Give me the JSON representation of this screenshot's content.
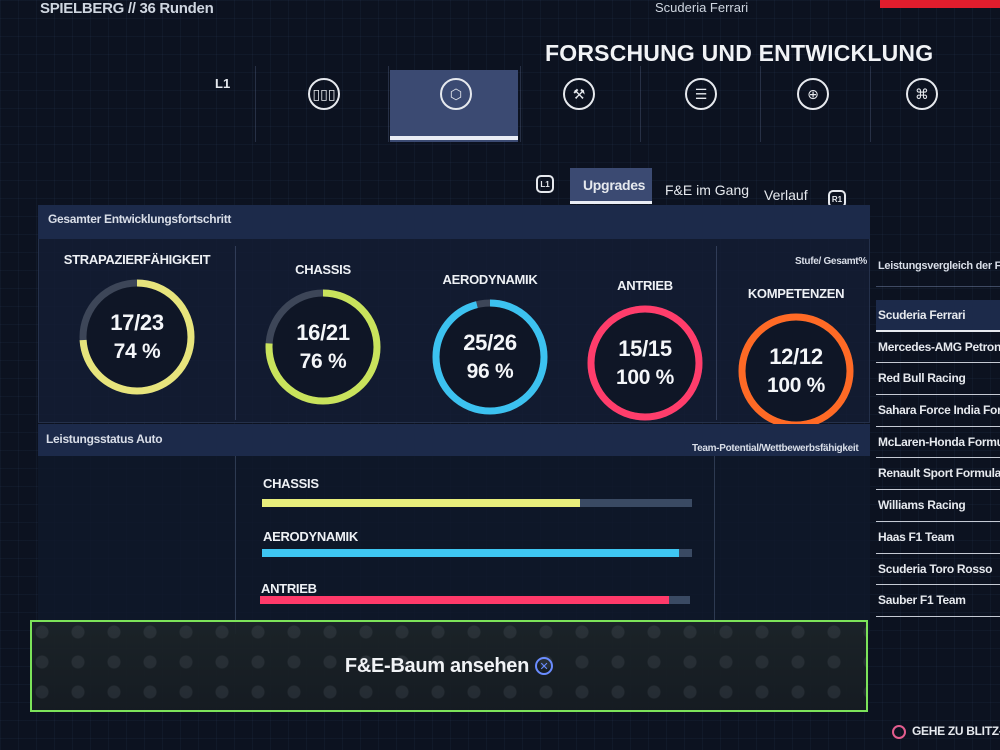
{
  "header": {
    "venue": "SPIELBERG // 36 Runden",
    "team": "Scuderia Ferrari",
    "title": "FORSCHUNG UND ENTWICKLUNG",
    "accent": "#e11d2d"
  },
  "categories": [
    {
      "icon": "tyres-icon",
      "glyph": "▯▯▯"
    },
    {
      "icon": "gear-bolt-icon",
      "glyph": "⬡"
    },
    {
      "icon": "wrench-icon",
      "glyph": "⚒"
    },
    {
      "icon": "list-icon",
      "glyph": "☰"
    },
    {
      "icon": "globe-icon",
      "glyph": "⊕"
    },
    {
      "icon": "trophy-icon",
      "glyph": "⌘"
    }
  ],
  "shoulder_left": "L1",
  "shoulder_right": "R1",
  "tabs": [
    "Upgrades",
    "F&E im Gang",
    "Verlauf"
  ],
  "progress": {
    "title": "Gesamter Entwicklungsfortschritt",
    "stufe": "Stufe/ Gesamt%",
    "rings": [
      {
        "label": "STRAPAZIERFÄHIGKEIT",
        "count": "17/23",
        "pct": "74 %",
        "value": 0.74,
        "color": "#e7e47c"
      },
      {
        "label": "CHASSIS",
        "count": "16/21",
        "pct": "76 %",
        "value": 0.76,
        "color": "#c9e35c"
      },
      {
        "label": "AERODYNAMIK",
        "count": "25/26",
        "pct": "96 %",
        "value": 0.96,
        "color": "#3cc2f0"
      },
      {
        "label": "ANTRIEB",
        "count": "15/15",
        "pct": "100 %",
        "value": 1.0,
        "color": "#ff3d6b"
      },
      {
        "label": "KOMPETENZEN",
        "count": "12/12",
        "pct": "100 %",
        "value": 1.0,
        "color": "#ff6a25"
      }
    ]
  },
  "status": {
    "title": "Leistungsstatus Auto",
    "right_label": "Team-Potential/Wettbewerbsfähigkeit",
    "bars": [
      {
        "label": "CHASSIS",
        "value": 0.74,
        "color": "#e8ee7c"
      },
      {
        "label": "AERODYNAMIK",
        "value": 0.97,
        "color": "#3ec6f2"
      },
      {
        "label": "ANTRIEB",
        "value": 0.95,
        "color": "#ff3a6a"
      }
    ]
  },
  "comparison": {
    "title": "Leistungsvergleich der F",
    "teams": [
      "Scuderia Ferrari",
      "Mercedes-AMG Petronas",
      "Red Bull Racing",
      "Sahara Force India Formula",
      "McLaren-Honda Formula",
      "Renault Sport Formula One",
      "Williams Racing",
      "Haas F1 Team",
      "Scuderia Toro Rosso",
      "Sauber F1 Team"
    ]
  },
  "tree_button": {
    "label": "F&E-Baum ansehen",
    "glyph": "✕",
    "border": "#7ce35a"
  },
  "goto": "GEHE ZU BLITZ-"
}
